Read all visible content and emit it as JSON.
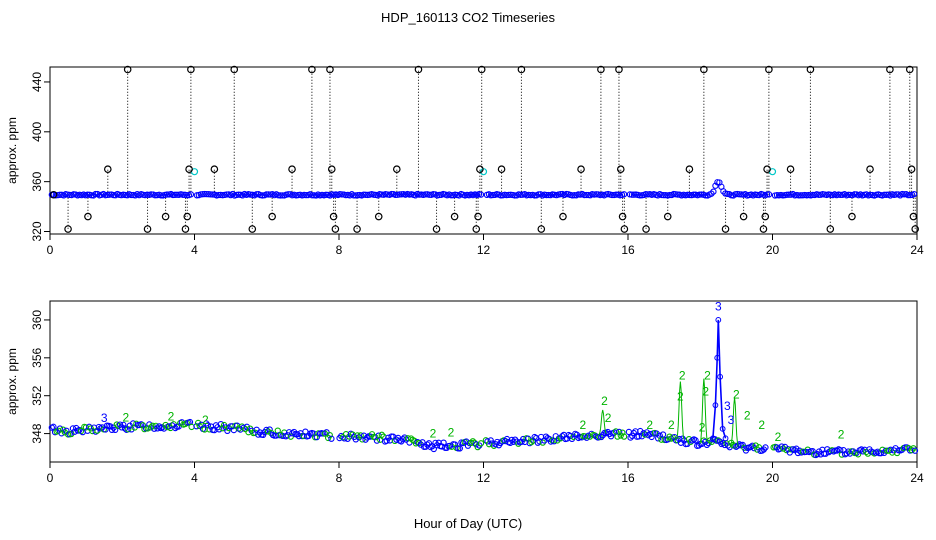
{
  "title": "HDP_160113  CO2 Timeseries",
  "xlabel": "Hour of Day (UTC)",
  "chart_data": [
    {
      "type": "scatter",
      "panel": "top",
      "ylabel": "approx. ppm",
      "xlim": [
        0,
        24
      ],
      "ylim": [
        318,
        452
      ],
      "x_ticks": [
        0,
        4,
        8,
        12,
        16,
        20,
        24
      ],
      "y_ticks": [
        320,
        360,
        400,
        440
      ],
      "baseline": 349.5,
      "spikes": [
        {
          "x": 0.1,
          "y": 349.5
        },
        {
          "x": 0.5,
          "y": 322
        },
        {
          "x": 1.05,
          "y": 332
        },
        {
          "x": 1.6,
          "y": 370
        },
        {
          "x": 2.15,
          "y": 450
        },
        {
          "x": 2.7,
          "y": 322
        },
        {
          "x": 3.2,
          "y": 332
        },
        {
          "x": 3.75,
          "y": 322
        },
        {
          "x": 3.8,
          "y": 332
        },
        {
          "x": 3.85,
          "y": 370
        },
        {
          "x": 3.9,
          "y": 450
        },
        {
          "x": 4.55,
          "y": 370
        },
        {
          "x": 5.1,
          "y": 450
        },
        {
          "x": 5.6,
          "y": 322
        },
        {
          "x": 6.15,
          "y": 332
        },
        {
          "x": 6.7,
          "y": 370
        },
        {
          "x": 7.25,
          "y": 450
        },
        {
          "x": 7.75,
          "y": 450
        },
        {
          "x": 7.8,
          "y": 370
        },
        {
          "x": 7.85,
          "y": 332
        },
        {
          "x": 7.9,
          "y": 322
        },
        {
          "x": 8.5,
          "y": 322
        },
        {
          "x": 9.1,
          "y": 332
        },
        {
          "x": 9.6,
          "y": 370
        },
        {
          "x": 10.2,
          "y": 450
        },
        {
          "x": 10.7,
          "y": 322
        },
        {
          "x": 11.2,
          "y": 332
        },
        {
          "x": 11.8,
          "y": 322
        },
        {
          "x": 11.85,
          "y": 332
        },
        {
          "x": 11.9,
          "y": 370
        },
        {
          "x": 11.95,
          "y": 450
        },
        {
          "x": 12.5,
          "y": 370
        },
        {
          "x": 13.05,
          "y": 450
        },
        {
          "x": 13.6,
          "y": 322
        },
        {
          "x": 14.2,
          "y": 332
        },
        {
          "x": 14.7,
          "y": 370
        },
        {
          "x": 15.25,
          "y": 450
        },
        {
          "x": 15.75,
          "y": 450
        },
        {
          "x": 15.8,
          "y": 370
        },
        {
          "x": 15.85,
          "y": 332
        },
        {
          "x": 15.9,
          "y": 322
        },
        {
          "x": 16.5,
          "y": 322
        },
        {
          "x": 17.1,
          "y": 332
        },
        {
          "x": 17.7,
          "y": 370
        },
        {
          "x": 18.1,
          "y": 450
        },
        {
          "x": 18.7,
          "y": 322
        },
        {
          "x": 19.2,
          "y": 332
        },
        {
          "x": 19.75,
          "y": 322
        },
        {
          "x": 19.8,
          "y": 332
        },
        {
          "x": 19.85,
          "y": 370
        },
        {
          "x": 19.9,
          "y": 450
        },
        {
          "x": 20.5,
          "y": 370
        },
        {
          "x": 21.05,
          "y": 450
        },
        {
          "x": 21.6,
          "y": 322
        },
        {
          "x": 22.2,
          "y": 332
        },
        {
          "x": 22.7,
          "y": 370
        },
        {
          "x": 23.25,
          "y": 450
        },
        {
          "x": 23.8,
          "y": 450
        },
        {
          "x": 23.85,
          "y": 370
        },
        {
          "x": 23.9,
          "y": 332
        },
        {
          "x": 23.95,
          "y": 322
        }
      ],
      "cyan_points": [
        {
          "x": 4.0,
          "y": 368
        },
        {
          "x": 12.0,
          "y": 368
        },
        {
          "x": 20.0,
          "y": 368
        }
      ],
      "spike_color": "#000000",
      "series_color": "#0000ff",
      "alt_color": "#00c8c8"
    },
    {
      "type": "scatter",
      "panel": "bottom",
      "ylabel": "approx. ppm",
      "xlim": [
        0,
        24
      ],
      "ylim": [
        345,
        362
      ],
      "x_ticks": [
        0,
        4,
        8,
        12,
        16,
        20,
        24
      ],
      "y_ticks": [
        348,
        352,
        356,
        360
      ],
      "level_curve": [
        {
          "x": 0.0,
          "y": 348.5
        },
        {
          "x": 0.5,
          "y": 348.2
        },
        {
          "x": 1.0,
          "y": 348.4
        },
        {
          "x": 2.0,
          "y": 348.7
        },
        {
          "x": 3.0,
          "y": 348.8
        },
        {
          "x": 3.9,
          "y": 348.9
        },
        {
          "x": 4.0,
          "y": 348.8
        },
        {
          "x": 5.0,
          "y": 348.6
        },
        {
          "x": 6.0,
          "y": 348.1
        },
        {
          "x": 7.0,
          "y": 347.9
        },
        {
          "x": 7.8,
          "y": 347.8
        },
        {
          "x": 8.0,
          "y": 347.8
        },
        {
          "x": 9.0,
          "y": 347.6
        },
        {
          "x": 10.0,
          "y": 347.2
        },
        {
          "x": 10.5,
          "y": 346.7
        },
        {
          "x": 11.0,
          "y": 346.7
        },
        {
          "x": 11.9,
          "y": 346.9
        },
        {
          "x": 12.0,
          "y": 347.0
        },
        {
          "x": 13.0,
          "y": 347.2
        },
        {
          "x": 14.0,
          "y": 347.5
        },
        {
          "x": 15.0,
          "y": 347.8
        },
        {
          "x": 15.5,
          "y": 348.0
        },
        {
          "x": 15.9,
          "y": 347.8
        },
        {
          "x": 16.0,
          "y": 347.9
        },
        {
          "x": 16.5,
          "y": 348.0
        },
        {
          "x": 17.0,
          "y": 347.6
        },
        {
          "x": 17.5,
          "y": 347.3
        },
        {
          "x": 18.0,
          "y": 346.9
        },
        {
          "x": 18.3,
          "y": 347.2
        },
        {
          "x": 18.6,
          "y": 347.0
        },
        {
          "x": 19.0,
          "y": 346.6
        },
        {
          "x": 19.8,
          "y": 346.5
        },
        {
          "x": 20.0,
          "y": 346.4
        },
        {
          "x": 21.0,
          "y": 346.1
        },
        {
          "x": 22.0,
          "y": 346.0
        },
        {
          "x": 23.0,
          "y": 346.2
        },
        {
          "x": 23.9,
          "y": 346.4
        }
      ],
      "spike": [
        {
          "x": 18.35,
          "y": 347.5
        },
        {
          "x": 18.42,
          "y": 351.0
        },
        {
          "x": 18.47,
          "y": 356.0
        },
        {
          "x": 18.5,
          "y": 360.0
        },
        {
          "x": 18.55,
          "y": 354.0
        },
        {
          "x": 18.62,
          "y": 348.5
        },
        {
          "x": 18.7,
          "y": 347.5
        }
      ],
      "labels": [
        {
          "x": 1.5,
          "y": 349.2,
          "text": "3",
          "color": "#0000ff"
        },
        {
          "x": 2.1,
          "y": 349.3,
          "text": "2",
          "color": "#00b400"
        },
        {
          "x": 3.35,
          "y": 349.4,
          "text": "2",
          "color": "#00b400"
        },
        {
          "x": 4.3,
          "y": 349.0,
          "text": "2",
          "color": "#00b400"
        },
        {
          "x": 10.6,
          "y": 347.6,
          "text": "2",
          "color": "#00b400"
        },
        {
          "x": 11.1,
          "y": 347.7,
          "text": "2",
          "color": "#00b400"
        },
        {
          "x": 14.75,
          "y": 348.5,
          "text": "2",
          "color": "#00b400"
        },
        {
          "x": 15.35,
          "y": 351.0,
          "text": "2",
          "color": "#00b400"
        },
        {
          "x": 15.45,
          "y": 349.2,
          "text": "2",
          "color": "#00b400"
        },
        {
          "x": 16.6,
          "y": 348.5,
          "text": "2",
          "color": "#00b400"
        },
        {
          "x": 17.2,
          "y": 348.5,
          "text": "2",
          "color": "#00b400"
        },
        {
          "x": 17.5,
          "y": 353.7,
          "text": "2",
          "color": "#00b400"
        },
        {
          "x": 17.45,
          "y": 351.5,
          "text": "2",
          "color": "#00b400"
        },
        {
          "x": 18.15,
          "y": 352.0,
          "text": "2",
          "color": "#00b400"
        },
        {
          "x": 18.2,
          "y": 353.7,
          "text": "2",
          "color": "#00b400"
        },
        {
          "x": 18.05,
          "y": 348.2,
          "text": "2",
          "color": "#00b400"
        },
        {
          "x": 18.75,
          "y": 350.5,
          "text": "3",
          "color": "#0000ff"
        },
        {
          "x": 18.85,
          "y": 349.0,
          "text": "3",
          "color": "#0000ff"
        },
        {
          "x": 19.0,
          "y": 351.7,
          "text": "2",
          "color": "#00b400"
        },
        {
          "x": 19.3,
          "y": 349.5,
          "text": "2",
          "color": "#00b400"
        },
        {
          "x": 19.7,
          "y": 348.5,
          "text": "2",
          "color": "#00b400"
        },
        {
          "x": 20.15,
          "y": 347.2,
          "text": "2",
          "color": "#00b400"
        },
        {
          "x": 21.9,
          "y": 347.5,
          "text": "2",
          "color": "#00b400"
        },
        {
          "x": 18.5,
          "y": 361.0,
          "text": "3",
          "color": "#0000ff"
        }
      ],
      "series_color": "#0000ff",
      "alt_color": "#00b400"
    }
  ]
}
